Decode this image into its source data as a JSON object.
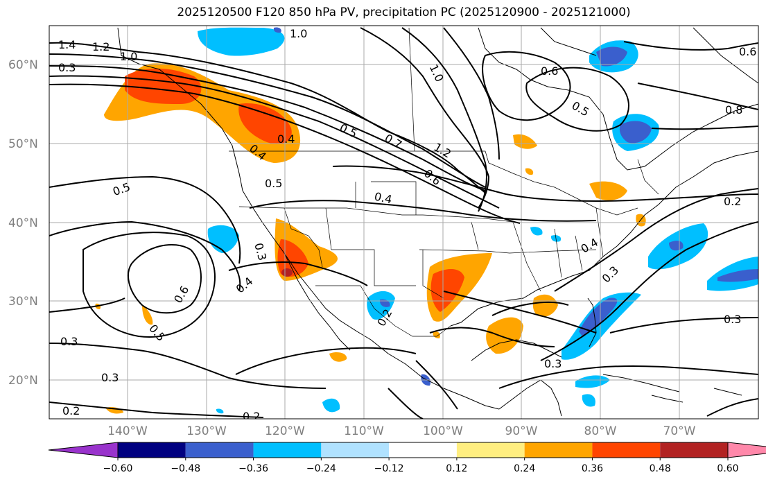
{
  "title": "2025120500 F120 850 hPa PV, precipitation PC (2025120900 - 2025121000)",
  "lat_labels": [
    "60°N",
    "50°N",
    "40°N",
    "30°N",
    "20°N"
  ],
  "lon_labels": [
    "140°W",
    "130°W",
    "120°W",
    "110°W",
    "100°W",
    "90°W",
    "80°W",
    "70°W"
  ],
  "colorbar": {
    "tick_labels": [
      "−0.60",
      "−0.48",
      "−0.36",
      "−0.24",
      "−0.12",
      "0.12",
      "0.24",
      "0.36",
      "0.48",
      "0.60"
    ],
    "colors": [
      "#9933cc",
      "#000080",
      "#3a5fcd",
      "#00bfff",
      "#b0e2ff",
      "#ffffff",
      "#ffee80",
      "#ffa500",
      "#ff4500",
      "#b22222",
      "#ff88aa"
    ]
  },
  "contour_labels": {
    "c14": "1.4",
    "c12": "1.2",
    "c10a": "1.0",
    "c10b": "1.0",
    "c10c": "1.0",
    "c03a": "0.3",
    "c08": "0.8",
    "c06a": "0.6",
    "c06b": "0.6",
    "c06c": "0.6",
    "c05a": "0.5",
    "c05b": "0.5",
    "c05c": "0.5",
    "c05d": "0.5",
    "c05e": "0.5",
    "c04a": "0.4",
    "c04b": "0.4",
    "c04c": "0.4",
    "c04d": "0.4",
    "c07": "0.7",
    "c12b": "1.2",
    "c02a": "0.2",
    "c02b": "0.2",
    "c02c": "0.2",
    "c03b": "0.3",
    "c03c": "0.3",
    "c03d": "0.3",
    "c03e": "0.3",
    "c06d": "0.6",
    "c03f": "0.3",
    "c02d": "0.2",
    "c04e": "0.4",
    "c03g": "0.3"
  }
}
